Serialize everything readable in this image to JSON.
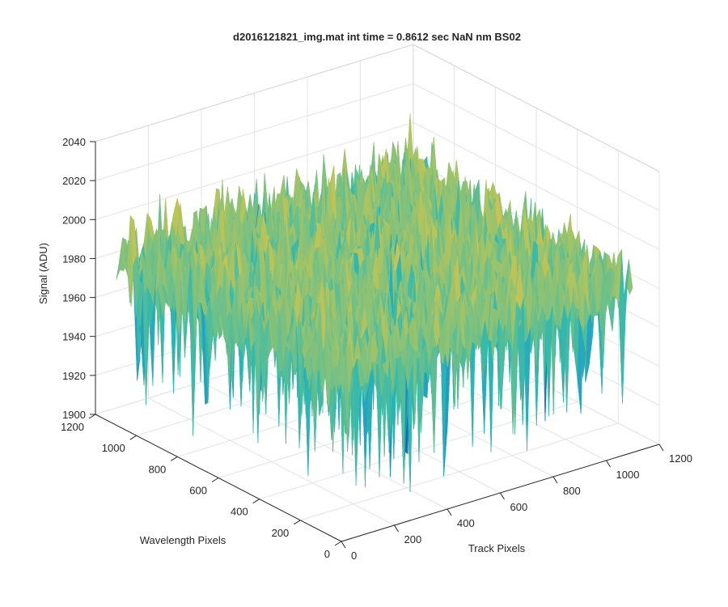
{
  "chart_data": {
    "type": "surface",
    "title": "d2016121821_img.mat int time = 0.8612 sec  NaN nm BS02",
    "xlabel": "Track Pixels",
    "ylabel": "Wavelength Pixels",
    "zlabel": "Signal (ADU)",
    "xlim": [
      0,
      1200
    ],
    "ylim": [
      0,
      1200
    ],
    "zlim": [
      1900,
      2040
    ],
    "xticks": [
      0,
      200,
      400,
      600,
      800,
      1000,
      1200
    ],
    "yticks": [
      0,
      200,
      400,
      600,
      800,
      1000,
      1200
    ],
    "zticks": [
      1900,
      1920,
      1940,
      1960,
      1980,
      2000,
      2020,
      2040
    ],
    "x_extent": [
      1,
      1100
    ],
    "y_extent": [
      1,
      1100
    ],
    "signal_mean": 1985,
    "signal_range": [
      1895,
      2030
    ],
    "grid": true,
    "view": "3d-default",
    "colormap": [
      "#0d6eb8",
      "#1f95c9",
      "#2ab7b3",
      "#6cc08a",
      "#b6c45a",
      "#e6c04a"
    ]
  }
}
